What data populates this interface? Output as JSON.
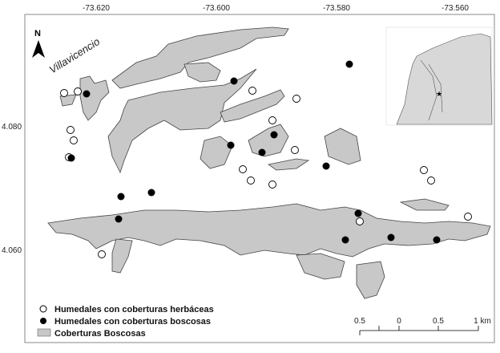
{
  "map": {
    "place_label": "Villavicencio",
    "north_label": "N",
    "lon_ticks": [
      "-73.620",
      "-73.600",
      "-73.580",
      "-73.560"
    ],
    "lat_ticks": [
      "4.080",
      "4.060"
    ],
    "colors": {
      "forest": "#c8c8c8",
      "forest_stroke": "#444444",
      "herbaceous": "#ffffff",
      "wooded": "#000000"
    }
  },
  "legend": {
    "items": [
      {
        "label": "Humedales con coberturas herbáceas",
        "symbol": "open-circle"
      },
      {
        "label": "Humedales con coberturas boscosas",
        "symbol": "filled-circle"
      },
      {
        "label": "Coberturas Boscosas",
        "symbol": "gray-box"
      }
    ]
  },
  "scale_bar": {
    "labels": [
      "0.5",
      "0",
      "0.5",
      "1 km"
    ]
  }
}
